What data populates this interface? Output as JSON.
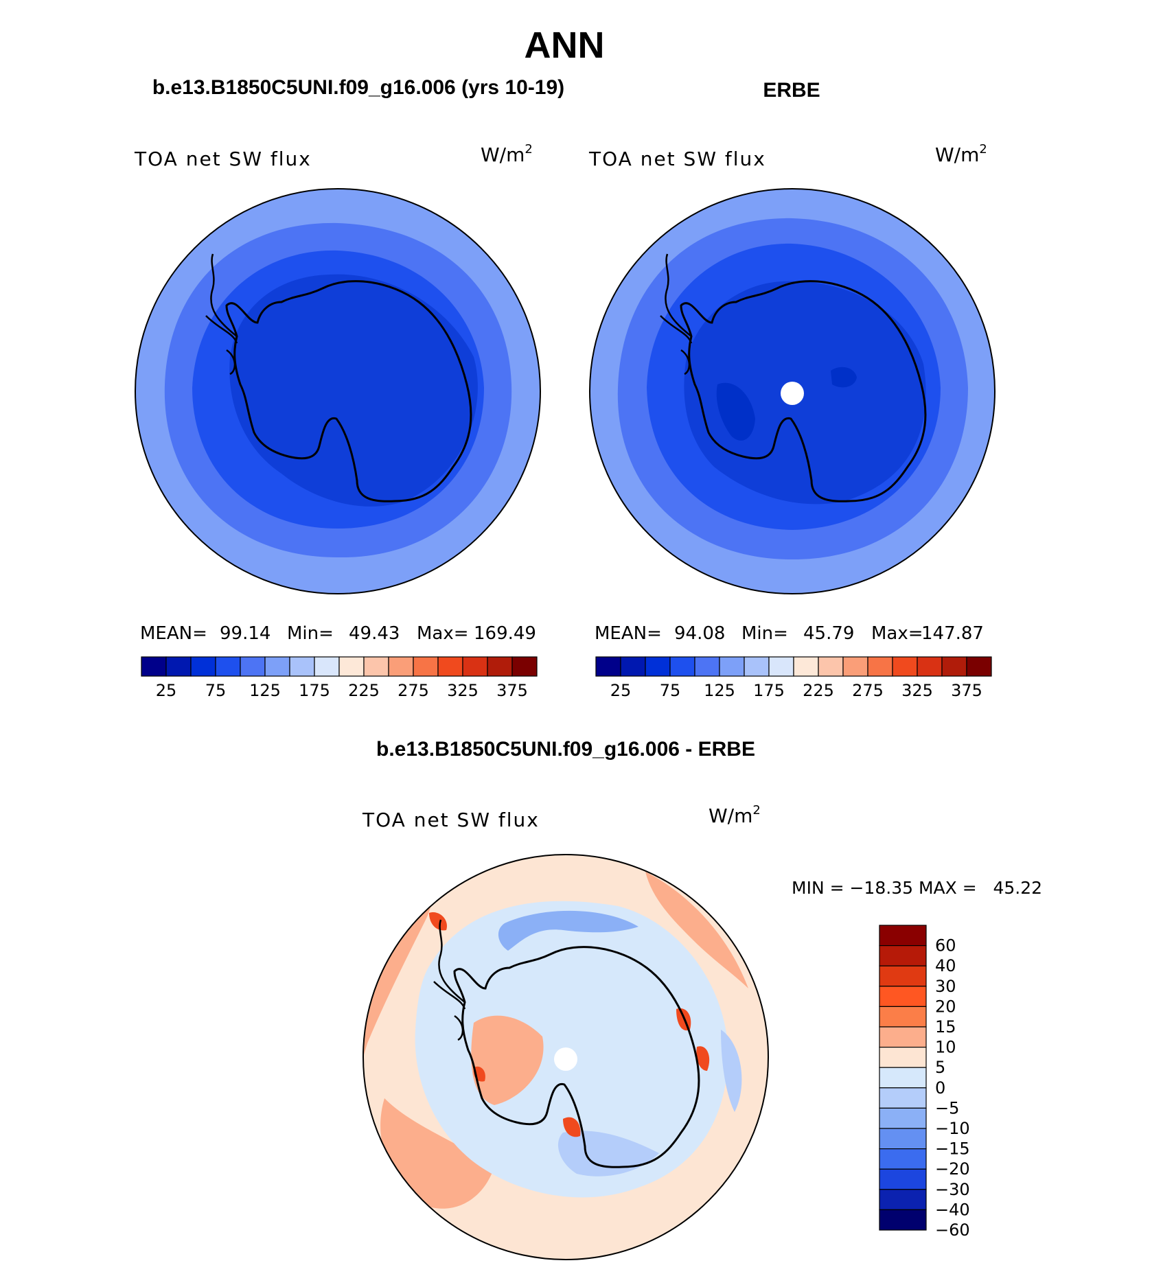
{
  "chart_data": {
    "type": "polar_map",
    "title": "ANN",
    "panels": [
      {
        "id": "model",
        "title": "b.e13.B1850C5UNI.f09_g16.006 (yrs 10-19)",
        "variable": "TOA net SW flux",
        "units_base": "W/m",
        "units_sup": "2",
        "stats": {
          "mean_label": "MEAN=",
          "mean": "99.14",
          "min_label": "Min=",
          "min": "49.43",
          "max_label": "Max=",
          "max": "169.49"
        },
        "colorbar": {
          "orientation": "horizontal",
          "tick_labels": [
            "25",
            "75",
            "125",
            "175",
            "225",
            "275",
            "325",
            "375"
          ],
          "colors": [
            "#00008a",
            "#0018b0",
            "#0030d8",
            "#1e50ee",
            "#4d74f4",
            "#7da0f8",
            "#a9c2fa",
            "#d9e6fb",
            "#fde8d8",
            "#fcc5ab",
            "#fa9e78",
            "#f77446",
            "#f04a1e",
            "#d93214",
            "#b01c0a",
            "#7a0000"
          ]
        },
        "contour_levels_shown": [
          75,
          100,
          125,
          150
        ]
      },
      {
        "id": "obs",
        "title": "ERBE",
        "variable": "TOA net SW flux",
        "units_base": "W/m",
        "units_sup": "2",
        "stats": {
          "mean_label": "MEAN=",
          "mean": "94.08",
          "min_label": "Min=",
          "min": "45.79",
          "max_label": "Max=",
          "max": "147.87"
        },
        "colorbar": {
          "orientation": "horizontal",
          "tick_labels": [
            "25",
            "75",
            "125",
            "175",
            "225",
            "275",
            "325",
            "375"
          ],
          "colors": [
            "#00008a",
            "#0018b0",
            "#0030d8",
            "#1e50ee",
            "#4d74f4",
            "#7da0f8",
            "#a9c2fa",
            "#d9e6fb",
            "#fde8d8",
            "#fcc5ab",
            "#fa9e78",
            "#f77446",
            "#f04a1e",
            "#d93214",
            "#b01c0a",
            "#7a0000"
          ]
        },
        "contour_levels_shown": [
          50,
          75,
          100,
          125
        ]
      },
      {
        "id": "diff",
        "title": "b.e13.B1850C5UNI.f09_g16.006 - ERBE",
        "variable": "TOA net SW flux",
        "units_base": "W/m",
        "units_sup": "2",
        "stats_text": "MIN = −18.35 MAX =   45.22",
        "colorbar": {
          "orientation": "vertical",
          "tick_labels": [
            "60",
            "40",
            "30",
            "20",
            "15",
            "10",
            "5",
            "0",
            "−5",
            "−10",
            "−15",
            "−20",
            "−30",
            "−40",
            "−60"
          ],
          "colors_top_to_bottom": [
            "#8a0000",
            "#b61a08",
            "#e03a12",
            "#ff5722",
            "#fb7e48",
            "#fcae8c",
            "#fde5d3",
            "#d6e8fb",
            "#b4cdfa",
            "#8bb0f6",
            "#6490f2",
            "#3b6cef",
            "#1c46df",
            "#0b22b0",
            "#00006e"
          ]
        },
        "contour_levels_shown": [
          -15,
          -10,
          -5,
          0,
          5,
          10,
          20
        ]
      }
    ]
  }
}
